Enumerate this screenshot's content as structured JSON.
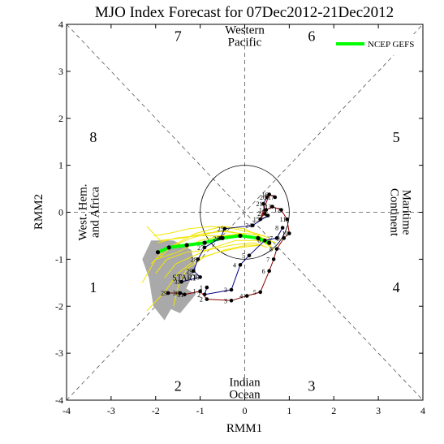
{
  "title": "MJO Index Forecast for 07Dec2012-21Dec2012",
  "chart_data": {
    "type": "scatter",
    "title": "MJO Index Forecast for 07Dec2012-21Dec2012",
    "xlabel": "RMM1",
    "ylabel": "RMM2",
    "xlim": [
      -4,
      4
    ],
    "ylim": [
      -4,
      4
    ],
    "xticks": [
      "-4",
      "-3",
      "-2",
      "-1",
      "0",
      "1",
      "2",
      "3",
      "4"
    ],
    "yticks": [
      "-4",
      "-3",
      "-2",
      "-1",
      "0",
      "1",
      "2",
      "3",
      "4"
    ],
    "unit_circle_radius": 1,
    "grid": "dashed diagonals and axes",
    "legend": {
      "position": "top-right",
      "entries": [
        {
          "name": "NCEP GEFS",
          "color": "#00ff00"
        }
      ]
    },
    "phase_labels": [
      {
        "text": "1",
        "x": -3.4,
        "y": -1.6
      },
      {
        "text": "2",
        "x": -1.5,
        "y": -3.7
      },
      {
        "text": "3",
        "x": 1.5,
        "y": -3.7
      },
      {
        "text": "4",
        "x": 3.4,
        "y": -1.6
      },
      {
        "text": "5",
        "x": 3.4,
        "y": 1.6
      },
      {
        "text": "6",
        "x": 1.5,
        "y": 3.75
      },
      {
        "text": "7",
        "x": -1.5,
        "y": 3.75
      },
      {
        "text": "8",
        "x": -3.4,
        "y": 1.6
      }
    ],
    "regions": [
      {
        "lines": [
          "Western",
          "Pacific"
        ],
        "x": 0,
        "y": 3.75,
        "rotate": 0
      },
      {
        "lines": [
          "Indian",
          "Ocean"
        ],
        "x": 0,
        "y": -3.75,
        "rotate": 0
      },
      {
        "lines": [
          "West. Hem.",
          "and Africa"
        ],
        "x": -3.5,
        "y": 0,
        "rotate": -90
      },
      {
        "lines": [
          "Maritime",
          "Continent"
        ],
        "x": 3.5,
        "y": 0,
        "rotate": 90
      }
    ],
    "start_label": {
      "text": "START",
      "x": -1.35,
      "y": -1.45
    },
    "observed_series": [
      {
        "name": "",
        "color": "#000080",
        "points": [
          [
            -0.85,
            -1.6,
            "1"
          ],
          [
            -0.9,
            -1.75,
            "2"
          ],
          [
            -0.3,
            -1.65,
            "3"
          ],
          [
            -0.1,
            -1.12,
            "4"
          ],
          [
            0.1,
            -0.92,
            "5"
          ],
          [
            0.45,
            -0.6,
            "6"
          ],
          [
            0.72,
            -0.55,
            "7"
          ],
          [
            0.85,
            -0.33,
            "8"
          ]
        ]
      },
      {
        "name": "",
        "color": "#000080",
        "points": [
          [
            0.5,
            0.32,
            "20"
          ],
          [
            0.42,
            0.18,
            "21"
          ],
          [
            0.45,
            -0.03,
            "22"
          ],
          [
            0.52,
            -0.07,
            "23"
          ],
          [
            0.18,
            -0.28,
            "24"
          ],
          [
            -0.45,
            -0.35,
            "25"
          ],
          [
            -0.55,
            -0.55,
            "26"
          ],
          [
            -0.9,
            -0.75,
            "27"
          ],
          [
            -1.05,
            -1.0,
            "28"
          ],
          [
            -1.15,
            -1.25,
            "29"
          ],
          [
            -1.0,
            -1.38,
            "30"
          ],
          [
            -1.42,
            -1.48,
            "31"
          ]
        ]
      }
    ],
    "forecast_series": [
      {
        "name": "",
        "color": "#8b0000",
        "points": [
          [
            -1.72,
            -1.72,
            "29"
          ],
          [
            -1.45,
            -1.72,
            "30"
          ],
          [
            -1.35,
            -1.75,
            "31"
          ],
          [
            -1.0,
            -1.68,
            "1"
          ],
          [
            -0.85,
            -1.85,
            "2"
          ],
          [
            -0.3,
            -1.88,
            "3"
          ],
          [
            0.05,
            -1.78,
            "4"
          ],
          [
            0.35,
            -1.7,
            "5"
          ],
          [
            0.55,
            -1.25,
            "6"
          ],
          [
            0.65,
            -1.0,
            "7"
          ],
          [
            0.72,
            -0.78,
            "8"
          ],
          [
            0.88,
            -0.55,
            "9"
          ],
          [
            1.0,
            -0.45,
            "10"
          ],
          [
            0.95,
            -0.15,
            "11"
          ],
          [
            0.82,
            0.05,
            "12"
          ],
          [
            0.62,
            0.12,
            "13"
          ],
          [
            0.48,
            0.05,
            "14"
          ],
          [
            0.35,
            -0.15,
            "15"
          ],
          [
            0.55,
            0.38,
            "16"
          ],
          [
            0.68,
            0.32,
            "17"
          ]
        ]
      }
    ],
    "ensemble_mean": {
      "name": "NCEP GEFS",
      "color": "#00ff00",
      "points": [
        [
          -1.95,
          -0.85
        ],
        [
          -1.7,
          -0.75
        ],
        [
          -1.3,
          -0.7
        ],
        [
          -0.9,
          -0.65
        ],
        [
          -0.5,
          -0.55
        ],
        [
          -0.1,
          -0.5
        ],
        [
          0.3,
          -0.55
        ],
        [
          0.55,
          -0.65
        ]
      ]
    },
    "ensemble_members": [
      [
        [
          -2.1,
          -1.1
        ],
        [
          -1.8,
          -0.8
        ],
        [
          -1.2,
          -0.55
        ],
        [
          -0.6,
          -0.4
        ],
        [
          -0.1,
          -0.45
        ],
        [
          0.35,
          -0.6
        ],
        [
          0.6,
          -0.75
        ]
      ],
      [
        [
          -1.9,
          -0.95
        ],
        [
          -1.6,
          -0.7
        ],
        [
          -1.1,
          -0.45
        ],
        [
          -0.5,
          -0.3
        ],
        [
          0.0,
          -0.35
        ],
        [
          0.4,
          -0.55
        ],
        [
          0.65,
          -0.8
        ]
      ],
      [
        [
          -2.0,
          -1.3
        ],
        [
          -1.75,
          -1.0
        ],
        [
          -1.3,
          -0.85
        ],
        [
          -0.8,
          -0.8
        ],
        [
          -0.3,
          -0.7
        ],
        [
          0.2,
          -0.65
        ],
        [
          0.5,
          -0.75
        ]
      ],
      [
        [
          -2.2,
          -0.3
        ],
        [
          -1.9,
          -0.6
        ],
        [
          -1.4,
          -0.55
        ],
        [
          -0.9,
          -0.45
        ],
        [
          -0.4,
          -0.4
        ],
        [
          0.1,
          -0.5
        ],
        [
          0.5,
          -0.6
        ]
      ],
      [
        [
          -1.8,
          -1.4
        ],
        [
          -1.55,
          -1.1
        ],
        [
          -1.2,
          -0.95
        ],
        [
          -0.7,
          -0.75
        ],
        [
          -0.2,
          -0.6
        ],
        [
          0.3,
          -0.6
        ],
        [
          0.6,
          -0.7
        ]
      ],
      [
        [
          -2.3,
          -1.5
        ],
        [
          -2.0,
          -1.0
        ],
        [
          -1.5,
          -0.85
        ],
        [
          -1.0,
          -0.6
        ],
        [
          -0.5,
          -0.5
        ],
        [
          0.0,
          -0.45
        ],
        [
          0.45,
          -0.5
        ]
      ],
      [
        [
          -2.05,
          -0.5
        ],
        [
          -1.7,
          -0.45
        ],
        [
          -1.25,
          -0.35
        ],
        [
          -0.75,
          -0.3
        ],
        [
          -0.25,
          -0.35
        ],
        [
          0.25,
          -0.45
        ],
        [
          0.55,
          -0.55
        ]
      ],
      [
        [
          -1.6,
          -2.0
        ],
        [
          -1.5,
          -1.6
        ],
        [
          -1.3,
          -1.2
        ],
        [
          -0.9,
          -0.95
        ],
        [
          -0.45,
          -0.8
        ],
        [
          0.05,
          -0.7
        ],
        [
          0.4,
          -0.7
        ]
      ],
      [
        [
          -2.2,
          -2.1
        ],
        [
          -1.8,
          -1.7
        ],
        [
          -1.5,
          -1.3
        ],
        [
          -1.1,
          -1.0
        ],
        [
          -0.6,
          -0.85
        ],
        [
          -0.1,
          -0.75
        ],
        [
          0.35,
          -0.7
        ]
      ],
      [
        [
          -1.95,
          -0.65
        ],
        [
          -1.55,
          -0.55
        ],
        [
          -1.05,
          -0.5
        ],
        [
          -0.55,
          -0.5
        ],
        [
          -0.05,
          -0.5
        ],
        [
          0.4,
          -0.55
        ],
        [
          0.7,
          -0.65
        ]
      ]
    ],
    "spread_polygons": [
      [
        [
          -2.1,
          -0.6
        ],
        [
          -1.6,
          -0.6
        ],
        [
          -1.2,
          -0.8
        ],
        [
          -1.1,
          -1.2
        ],
        [
          -1.3,
          -1.6
        ],
        [
          -1.5,
          -1.8
        ],
        [
          -1.8,
          -2.3
        ],
        [
          -2.05,
          -2.0
        ],
        [
          -2.15,
          -1.4
        ],
        [
          -2.3,
          -1.0
        ]
      ],
      [
        [
          -1.75,
          -1.55
        ],
        [
          -1.35,
          -1.6
        ],
        [
          -1.1,
          -1.75
        ],
        [
          -1.45,
          -2.15
        ],
        [
          -1.8,
          -2.0
        ]
      ]
    ]
  }
}
